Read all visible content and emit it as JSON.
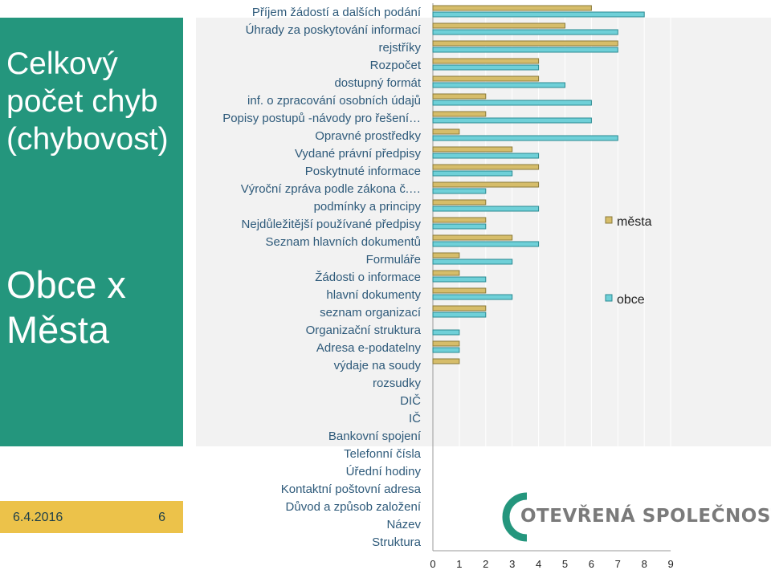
{
  "sidebar": {
    "title": "Celkový počet chyb (chybovost)",
    "subtitle": "Obce x Města"
  },
  "footer": {
    "date": "6.4.2016",
    "page": "6"
  },
  "logo": {
    "text": "OTEVŘENÁ SPOLEČNOST"
  },
  "colors": {
    "sidebar": "#24967d",
    "footer": "#ecc24a",
    "mesta": "#d6bd6a",
    "obce": "#6fd0d8"
  },
  "chart_data": {
    "type": "bar",
    "orientation": "horizontal",
    "categories": [
      "Příjem žádostí a dalších podání",
      "Úhrady za poskytování informací",
      "rejstříky",
      "Rozpočet",
      "dostupný formát",
      "inf. o zpracování osobních údajů",
      "Popisy postupů -návody pro řešení…",
      "Opravné prostředky",
      "Vydané právní předpisy",
      "Poskytnuté informace",
      "Výroční zpráva podle zákona č.…",
      "podmínky a principy",
      "Nejdůležitější používané předpisy",
      "Seznam hlavních dokumentů",
      "Formuláře",
      "Žádosti o informace",
      "hlavní dokumenty",
      "seznam organizací",
      "Organizační struktura",
      "Adresa e-podatelny",
      "výdaje na soudy",
      "rozsudky",
      "DIČ",
      "IČ",
      "Bankovní spojení",
      "Telefonní čísla",
      "Úřední hodiny",
      "Kontaktní poštovní adresa",
      "Důvod a způsob založení",
      "Název",
      "Struktura"
    ],
    "series": [
      {
        "name": "města",
        "values": [
          6,
          5,
          7,
          4,
          4,
          2,
          2,
          1,
          3,
          4,
          4,
          2,
          2,
          3,
          1,
          1,
          2,
          2,
          0,
          1,
          1,
          0,
          0,
          0,
          0,
          0,
          0,
          0,
          0,
          0,
          0
        ]
      },
      {
        "name": "obce",
        "values": [
          8,
          7,
          7,
          4,
          5,
          6,
          6,
          7,
          4,
          3,
          2,
          4,
          2,
          4,
          3,
          2,
          3,
          2,
          1,
          1,
          0,
          0,
          0,
          0,
          0,
          0,
          0,
          0,
          0,
          0,
          0
        ]
      }
    ],
    "xlim": [
      0,
      9
    ],
    "xticks": [
      "0",
      "1",
      "2",
      "3",
      "4",
      "5",
      "6",
      "7",
      "8",
      "9"
    ],
    "grid": true,
    "legend": "right"
  }
}
